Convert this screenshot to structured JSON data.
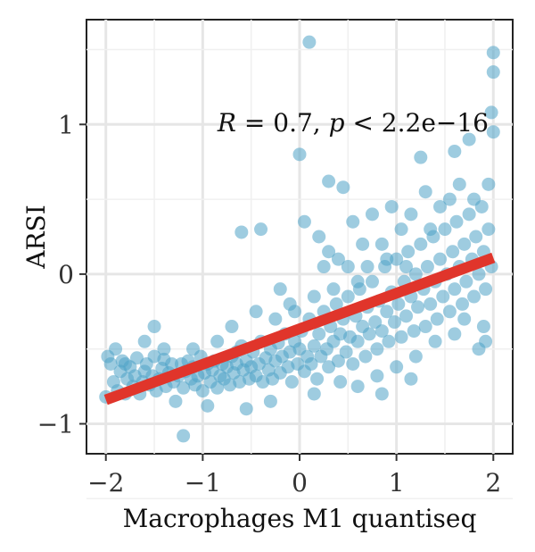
{
  "chart_data": {
    "type": "scatter",
    "xlabel": "Macrophages M1 quantiseq",
    "ylabel": "ARSI",
    "xlim": [
      -2.2,
      2.2
    ],
    "ylim": [
      -1.2,
      1.7
    ],
    "x_ticks": [
      -2,
      -1,
      0,
      1,
      2
    ],
    "x_tick_labels": [
      "−2",
      "−1",
      "0",
      "1",
      "2"
    ],
    "y_ticks": [
      -1,
      0,
      1
    ],
    "y_tick_labels": [
      "−1",
      "0",
      "1"
    ],
    "grid": true,
    "annotation": {
      "r_label": "R",
      "r_value": " = 0.7, ",
      "p_label": "p",
      "p_value": " < 2.2e−16"
    },
    "regression": {
      "x": [
        -2,
        2
      ],
      "y": [
        -0.84,
        0.11
      ]
    },
    "point_color": "#4fa3c7",
    "line_color": "#e0352b",
    "points": [
      [
        -2.0,
        -0.82
      ],
      [
        -1.98,
        -0.55
      ],
      [
        -1.95,
        -0.6
      ],
      [
        -1.92,
        -0.72
      ],
      [
        -1.9,
        -0.5
      ],
      [
        -1.88,
        -0.78
      ],
      [
        -1.85,
        -0.65
      ],
      [
        -1.83,
        -0.58
      ],
      [
        -1.8,
        -0.8
      ],
      [
        -1.78,
        -0.7
      ],
      [
        -1.75,
        -0.62
      ],
      [
        -1.72,
        -0.75
      ],
      [
        -1.7,
        -0.68
      ],
      [
        -1.68,
        -0.56
      ],
      [
        -1.65,
        -0.8
      ],
      [
        -1.62,
        -0.72
      ],
      [
        -1.6,
        -0.65
      ],
      [
        -1.58,
        -0.6
      ],
      [
        -1.55,
        -0.74
      ],
      [
        -1.52,
        -0.68
      ],
      [
        -1.5,
        -0.55
      ],
      [
        -1.48,
        -0.78
      ],
      [
        -1.45,
        -0.7
      ],
      [
        -1.42,
        -0.63
      ],
      [
        -1.4,
        -0.57
      ],
      [
        -1.38,
        -0.75
      ],
      [
        -1.35,
        -0.66
      ],
      [
        -1.32,
        -0.6
      ],
      [
        -1.3,
        -0.72
      ],
      [
        -1.28,
        -0.85
      ],
      [
        -1.25,
        -0.68
      ],
      [
        -1.22,
        -0.6
      ],
      [
        -1.2,
        -0.76
      ],
      [
        -1.18,
        -0.65
      ],
      [
        -1.15,
        -0.58
      ],
      [
        -1.12,
        -0.7
      ],
      [
        -1.1,
        -0.62
      ],
      [
        -1.08,
        -0.74
      ],
      [
        -1.05,
        -0.68
      ],
      [
        -1.02,
        -0.55
      ],
      [
        -1.0,
        -0.78
      ],
      [
        -0.98,
        -0.66
      ],
      [
        -0.95,
        -0.6
      ],
      [
        -0.92,
        -0.72
      ],
      [
        -0.9,
        -0.64
      ],
      [
        -0.88,
        -0.58
      ],
      [
        -0.85,
        -0.76
      ],
      [
        -0.82,
        -0.68
      ],
      [
        -0.8,
        -0.6
      ],
      [
        -0.78,
        -0.7
      ],
      [
        -0.75,
        -0.62
      ],
      [
        -0.72,
        -0.74
      ],
      [
        -0.7,
        -0.55
      ],
      [
        -0.68,
        -0.66
      ],
      [
        -0.65,
        -0.6
      ],
      [
        -0.62,
        -0.72
      ],
      [
        -0.6,
        -0.48
      ],
      [
        -0.58,
        -0.64
      ],
      [
        -0.55,
        -0.58
      ],
      [
        -0.52,
        -0.7
      ],
      [
        -0.5,
        -0.62
      ],
      [
        -0.48,
        -0.52
      ],
      [
        -0.45,
        -0.68
      ],
      [
        -0.42,
        -0.6
      ],
      [
        -0.4,
        -0.45
      ],
      [
        -0.38,
        -0.72
      ],
      [
        -0.35,
        -0.56
      ],
      [
        -0.32,
        -0.64
      ],
      [
        -0.3,
        -0.5
      ],
      [
        -0.28,
        -0.7
      ],
      [
        -0.25,
        -0.58
      ],
      [
        -0.22,
        -0.46
      ],
      [
        -0.2,
        -0.66
      ],
      [
        -0.18,
        -0.55
      ],
      [
        -0.15,
        -0.4
      ],
      [
        -0.12,
        -0.62
      ],
      [
        -0.1,
        -0.52
      ],
      [
        -0.08,
        -0.72
      ],
      [
        -0.05,
        -0.45
      ],
      [
        -0.02,
        -0.6
      ],
      [
        0.0,
        -0.5
      ],
      [
        0.02,
        -0.38
      ],
      [
        0.05,
        -0.65
      ],
      [
        0.08,
        -0.55
      ],
      [
        0.1,
        -0.3
      ],
      [
        0.12,
        -0.6
      ],
      [
        0.15,
        -0.48
      ],
      [
        0.18,
        -0.7
      ],
      [
        0.2,
        -0.4
      ],
      [
        0.22,
        -0.55
      ],
      [
        0.25,
        -0.25
      ],
      [
        0.28,
        -0.5
      ],
      [
        0.3,
        -0.62
      ],
      [
        0.32,
        -0.35
      ],
      [
        0.35,
        -0.45
      ],
      [
        0.38,
        -0.2
      ],
      [
        0.4,
        -0.58
      ],
      [
        0.42,
        -0.4
      ],
      [
        0.45,
        -0.3
      ],
      [
        0.48,
        -0.52
      ],
      [
        0.5,
        -0.15
      ],
      [
        0.52,
        -0.42
      ],
      [
        0.55,
        -0.6
      ],
      [
        0.58,
        -0.28
      ],
      [
        0.6,
        -0.45
      ],
      [
        0.62,
        -0.1
      ],
      [
        0.65,
        -0.35
      ],
      [
        0.68,
        -0.55
      ],
      [
        0.7,
        -0.22
      ],
      [
        0.72,
        -0.4
      ],
      [
        0.75,
        -0.05
      ],
      [
        0.78,
        -0.32
      ],
      [
        0.8,
        -0.5
      ],
      [
        0.82,
        -0.18
      ],
      [
        0.85,
        -0.38
      ],
      [
        0.88,
        0.05
      ],
      [
        0.9,
        -0.25
      ],
      [
        0.92,
        -0.45
      ],
      [
        0.95,
        -0.12
      ],
      [
        0.98,
        -0.32
      ],
      [
        1.0,
        0.1
      ],
      [
        1.02,
        -0.2
      ],
      [
        1.05,
        -0.42
      ],
      [
        1.08,
        -0.05
      ],
      [
        1.1,
        -0.28
      ],
      [
        1.12,
        0.15
      ],
      [
        1.15,
        -0.15
      ],
      [
        1.18,
        -0.38
      ],
      [
        1.2,
        0.0
      ],
      [
        1.22,
        -0.22
      ],
      [
        1.25,
        0.2
      ],
      [
        1.28,
        -0.1
      ],
      [
        1.3,
        -0.35
      ],
      [
        1.32,
        0.05
      ],
      [
        1.35,
        -0.2
      ],
      [
        1.38,
        0.25
      ],
      [
        1.4,
        -0.05
      ],
      [
        1.42,
        -0.3
      ],
      [
        1.45,
        0.1
      ],
      [
        1.48,
        -0.15
      ],
      [
        1.5,
        0.3
      ],
      [
        1.52,
        0.0
      ],
      [
        1.55,
        -0.25
      ],
      [
        1.58,
        0.15
      ],
      [
        1.6,
        -0.1
      ],
      [
        1.62,
        0.35
      ],
      [
        1.65,
        0.05
      ],
      [
        1.68,
        -0.2
      ],
      [
        1.7,
        0.2
      ],
      [
        1.72,
        -0.05
      ],
      [
        1.75,
        0.4
      ],
      [
        1.78,
        0.1
      ],
      [
        1.8,
        -0.15
      ],
      [
        1.82,
        0.25
      ],
      [
        1.85,
        0.0
      ],
      [
        1.88,
        0.45
      ],
      [
        1.9,
        0.15
      ],
      [
        1.92,
        -0.1
      ],
      [
        1.95,
        0.3
      ],
      [
        1.98,
        0.05
      ],
      [
        2.0,
        1.48
      ],
      [
        2.0,
        1.35
      ],
      [
        1.98,
        1.08
      ],
      [
        2.0,
        0.95
      ],
      [
        1.95,
        0.6
      ],
      [
        1.92,
        -0.45
      ],
      [
        1.85,
        -0.5
      ],
      [
        1.8,
        0.5
      ],
      [
        1.75,
        0.9
      ],
      [
        1.7,
        -0.3
      ],
      [
        -0.3,
        -0.85
      ],
      [
        0.15,
        -0.8
      ],
      [
        0.1,
        1.55
      ],
      [
        0.0,
        0.8
      ],
      [
        0.3,
        0.62
      ],
      [
        0.45,
        0.58
      ],
      [
        1.25,
        0.78
      ],
      [
        1.6,
        0.82
      ],
      [
        -1.2,
        -1.08
      ],
      [
        -0.95,
        -0.88
      ],
      [
        -0.55,
        -0.9
      ],
      [
        -0.4,
        0.3
      ],
      [
        -0.6,
        0.28
      ],
      [
        -1.5,
        -0.35
      ],
      [
        -0.85,
        -0.45
      ],
      [
        -0.7,
        -0.35
      ],
      [
        0.75,
        0.4
      ],
      [
        0.95,
        0.45
      ],
      [
        1.05,
        0.3
      ],
      [
        1.3,
        0.55
      ],
      [
        0.55,
        0.35
      ],
      [
        0.65,
        0.2
      ],
      [
        0.4,
        0.1
      ],
      [
        0.25,
        0.05
      ],
      [
        0.05,
        0.35
      ],
      [
        0.2,
        0.25
      ],
      [
        -0.1,
        -0.2
      ],
      [
        -0.2,
        -0.1
      ],
      [
        0.35,
        -0.1
      ],
      [
        0.85,
        0.2
      ],
      [
        1.15,
        0.4
      ],
      [
        1.45,
        0.45
      ],
      [
        1.55,
        0.5
      ],
      [
        1.65,
        0.6
      ],
      [
        1.35,
        0.3
      ],
      [
        0.15,
        -0.15
      ],
      [
        -0.05,
        -0.25
      ],
      [
        0.6,
        -0.05
      ],
      [
        0.9,
        0.1
      ],
      [
        1.1,
        0.05
      ],
      [
        -0.25,
        -0.3
      ],
      [
        -0.45,
        -0.25
      ],
      [
        0.3,
        0.15
      ],
      [
        0.5,
        0.05
      ],
      [
        0.7,
        0.05
      ],
      [
        -1.6,
        -0.45
      ],
      [
        -1.8,
        -0.6
      ],
      [
        -1.4,
        -0.5
      ],
      [
        -1.1,
        -0.5
      ],
      [
        -0.65,
        -0.52
      ],
      [
        0.42,
        -0.72
      ],
      [
        0.6,
        -0.75
      ],
      [
        0.8,
        -0.68
      ],
      [
        1.0,
        -0.62
      ],
      [
        1.2,
        -0.55
      ],
      [
        1.4,
        -0.45
      ],
      [
        1.6,
        -0.4
      ],
      [
        1.9,
        -0.35
      ],
      [
        1.15,
        -0.7
      ],
      [
        0.85,
        -0.8
      ]
    ]
  }
}
